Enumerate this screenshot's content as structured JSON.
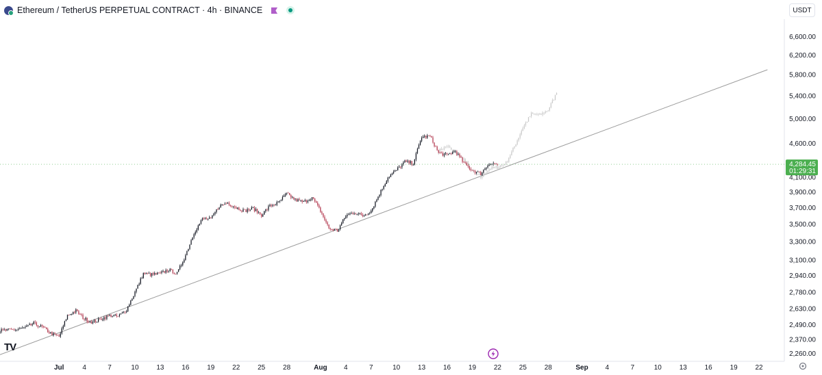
{
  "header": {
    "title": "Ethereum / TetherUS PERPETUAL CONTRACT · 4h · BINANCE"
  },
  "currency_label": "USDT",
  "brand_logo": "TV",
  "colors": {
    "up": "#131722",
    "down": "#b2384e",
    "projection": "#c9c9c9",
    "trendline": "#9a9a9a",
    "price_badge": "#4caf50"
  },
  "chart_data": {
    "type": "candlestick",
    "interval": "4h",
    "scale": "log",
    "ylim": [
      2200,
      7000
    ],
    "xlim": [
      "2025-06-24",
      "2025-09-25"
    ],
    "y_ticks": [
      "6,600.00",
      "6,200.00",
      "5,800.00",
      "5,400.00",
      "5,000.00",
      "4,600.00",
      "4,100.00",
      "3,900.00",
      "3,700.00",
      "3,500.00",
      "3,300.00",
      "3,100.00",
      "2,940.00",
      "2,780.00",
      "2,630.00",
      "2,490.00",
      "2,370.00",
      "2,260.00"
    ],
    "x_ticks": [
      {
        "date": "2025-07-01",
        "label": "Jul",
        "month": true
      },
      {
        "date": "2025-07-04",
        "label": "4"
      },
      {
        "date": "2025-07-07",
        "label": "7"
      },
      {
        "date": "2025-07-10",
        "label": "10"
      },
      {
        "date": "2025-07-13",
        "label": "13"
      },
      {
        "date": "2025-07-16",
        "label": "16"
      },
      {
        "date": "2025-07-19",
        "label": "19"
      },
      {
        "date": "2025-07-22",
        "label": "22"
      },
      {
        "date": "2025-07-25",
        "label": "25"
      },
      {
        "date": "2025-07-28",
        "label": "28"
      },
      {
        "date": "2025-08-01",
        "label": "Aug",
        "month": true
      },
      {
        "date": "2025-08-04",
        "label": "4"
      },
      {
        "date": "2025-08-07",
        "label": "7"
      },
      {
        "date": "2025-08-10",
        "label": "10"
      },
      {
        "date": "2025-08-13",
        "label": "13"
      },
      {
        "date": "2025-08-16",
        "label": "16"
      },
      {
        "date": "2025-08-19",
        "label": "19"
      },
      {
        "date": "2025-08-22",
        "label": "22"
      },
      {
        "date": "2025-08-25",
        "label": "25"
      },
      {
        "date": "2025-08-28",
        "label": "28"
      },
      {
        "date": "2025-09-01",
        "label": "Sep",
        "month": true
      },
      {
        "date": "2025-09-04",
        "label": "4"
      },
      {
        "date": "2025-09-07",
        "label": "7"
      },
      {
        "date": "2025-09-10",
        "label": "10"
      },
      {
        "date": "2025-09-13",
        "label": "13"
      },
      {
        "date": "2025-09-16",
        "label": "16"
      },
      {
        "date": "2025-09-19",
        "label": "19"
      },
      {
        "date": "2025-09-22",
        "label": "22"
      }
    ],
    "current_price": {
      "value": 4284.45,
      "label": "4,284.45",
      "countdown": "01:29:31"
    },
    "price_path": [
      [
        "2025-06-24",
        2440
      ],
      [
        "2025-06-26",
        2450
      ],
      [
        "2025-06-27",
        2465
      ],
      [
        "2025-06-28",
        2500
      ],
      [
        "2025-06-29",
        2470
      ],
      [
        "2025-06-30",
        2420
      ],
      [
        "2025-07-01",
        2390
      ],
      [
        "2025-07-02",
        2570
      ],
      [
        "2025-07-03",
        2610
      ],
      [
        "2025-07-04",
        2540
      ],
      [
        "2025-07-05",
        2510
      ],
      [
        "2025-07-06",
        2540
      ],
      [
        "2025-07-07",
        2570
      ],
      [
        "2025-07-08",
        2560
      ],
      [
        "2025-07-09",
        2620
      ],
      [
        "2025-07-10",
        2780
      ],
      [
        "2025-07-11",
        2960
      ],
      [
        "2025-07-12",
        2950
      ],
      [
        "2025-07-13",
        2960
      ],
      [
        "2025-07-14",
        3000
      ],
      [
        "2025-07-15",
        2960
      ],
      [
        "2025-07-16",
        3150
      ],
      [
        "2025-07-17",
        3400
      ],
      [
        "2025-07-18",
        3560
      ],
      [
        "2025-07-19",
        3560
      ],
      [
        "2025-07-20",
        3720
      ],
      [
        "2025-07-21",
        3760
      ],
      [
        "2025-07-22",
        3700
      ],
      [
        "2025-07-23",
        3660
      ],
      [
        "2025-07-24",
        3690
      ],
      [
        "2025-07-25",
        3610
      ],
      [
        "2025-07-26",
        3720
      ],
      [
        "2025-07-27",
        3760
      ],
      [
        "2025-07-28",
        3880
      ],
      [
        "2025-07-29",
        3800
      ],
      [
        "2025-07-30",
        3770
      ],
      [
        "2025-07-31",
        3830
      ],
      [
        "2025-08-01",
        3660
      ],
      [
        "2025-08-02",
        3450
      ],
      [
        "2025-08-03",
        3420
      ],
      [
        "2025-08-04",
        3600
      ],
      [
        "2025-08-05",
        3640
      ],
      [
        "2025-08-06",
        3600
      ],
      [
        "2025-08-07",
        3660
      ],
      [
        "2025-08-08",
        3880
      ],
      [
        "2025-08-09",
        4100
      ],
      [
        "2025-08-10",
        4200
      ],
      [
        "2025-08-11",
        4320
      ],
      [
        "2025-08-12",
        4300
      ],
      [
        "2025-08-13",
        4700
      ],
      [
        "2025-08-14",
        4710
      ],
      [
        "2025-08-15",
        4450
      ],
      [
        "2025-08-16",
        4420
      ],
      [
        "2025-08-17",
        4480
      ],
      [
        "2025-08-18",
        4300
      ],
      [
        "2025-08-19",
        4200
      ],
      [
        "2025-08-20",
        4150
      ],
      [
        "2025-08-21",
        4300
      ],
      [
        "2025-08-22",
        4284.45
      ]
    ],
    "projection_path": [
      [
        "2025-08-15",
        4480
      ],
      [
        "2025-08-16",
        4560
      ],
      [
        "2025-08-17",
        4440
      ],
      [
        "2025-08-18",
        4360
      ],
      [
        "2025-08-19",
        4180
      ],
      [
        "2025-08-20",
        4100
      ],
      [
        "2025-08-21",
        4220
      ],
      [
        "2025-08-22",
        4240
      ],
      [
        "2025-08-23",
        4300
      ],
      [
        "2025-08-24",
        4550
      ],
      [
        "2025-08-25",
        4850
      ],
      [
        "2025-08-26",
        5080
      ],
      [
        "2025-08-27",
        5060
      ],
      [
        "2025-08-28",
        5150
      ],
      [
        "2025-08-29",
        5450
      ]
    ],
    "trendline": {
      "start": [
        "2025-06-24",
        2250
      ],
      "end": [
        "2025-09-23",
        5900
      ]
    }
  }
}
